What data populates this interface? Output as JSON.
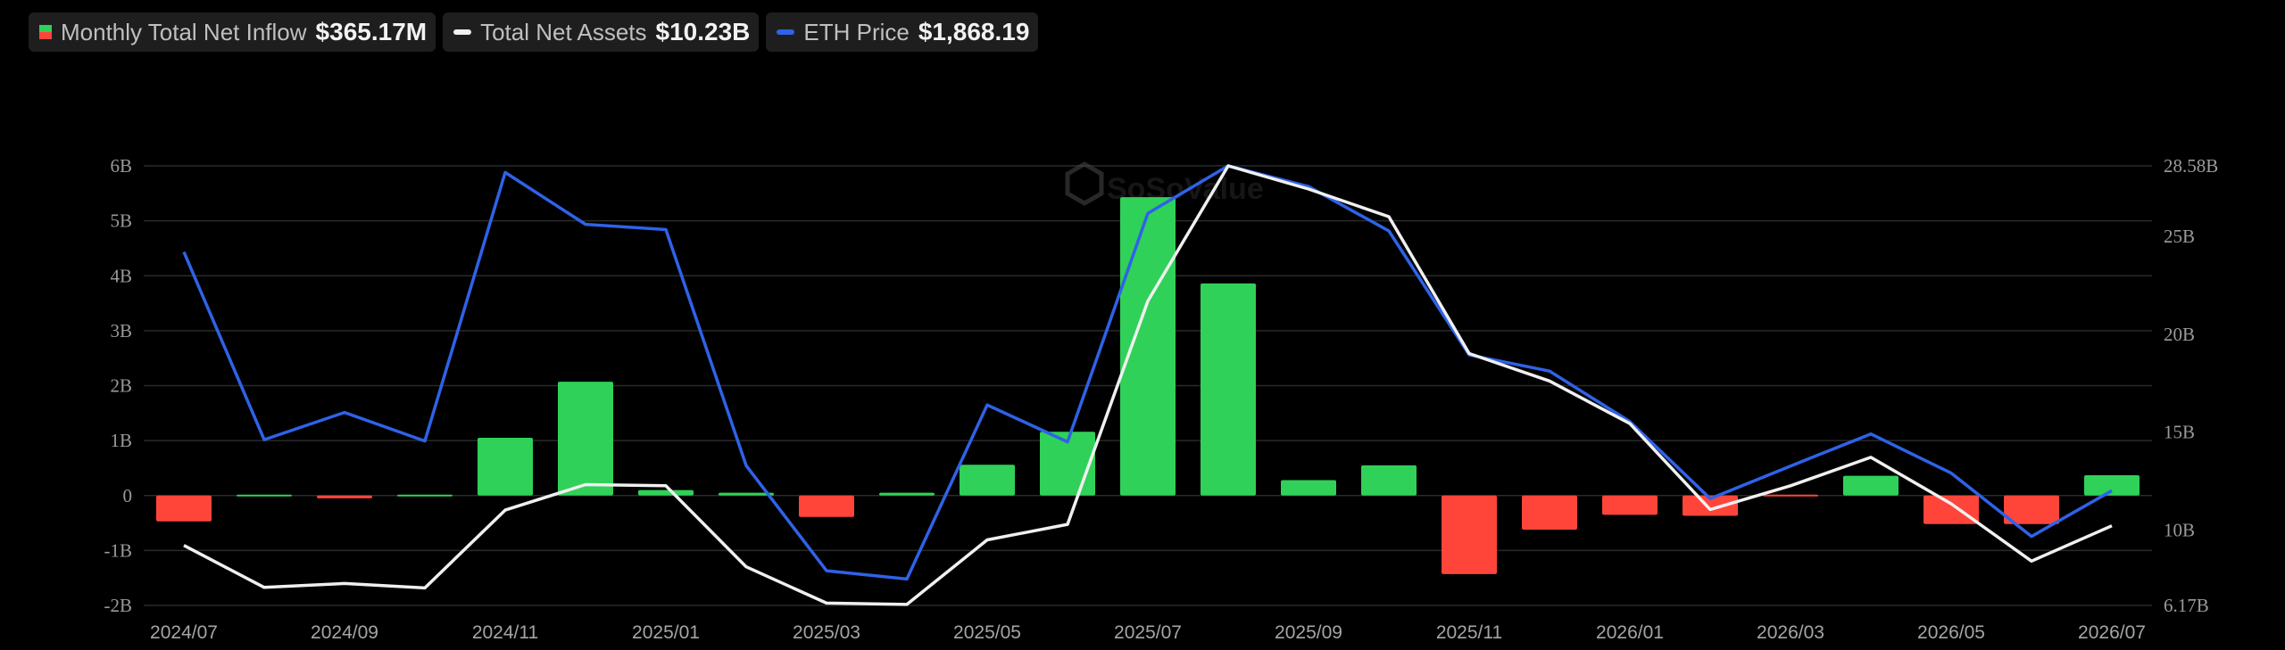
{
  "legend": {
    "inflow_label": "Monthly Total Net Inflow",
    "inflow_value": "$365.17M",
    "assets_label": "Total Net Assets",
    "assets_value": "$10.23B",
    "eth_label": "ETH Price",
    "eth_value": "$1,868.19"
  },
  "colors": {
    "positive": "#30d158",
    "negative": "#ff453a",
    "assets_line": "#f0f0f0",
    "eth_line": "#2f62e8",
    "grid": "#2a2a2a"
  },
  "watermark": "SoSoValue",
  "chart_data": {
    "type": "bar",
    "months": [
      "2024/07",
      "2024/08",
      "2024/09",
      "2024/10",
      "2024/11",
      "2024/12",
      "2025/01",
      "2025/02",
      "2025/03",
      "2025/04",
      "2025/05",
      "2025/06",
      "2025/07",
      "2025/08",
      "2025/09",
      "2025/10",
      "2025/11",
      "2025/12",
      "2026/01",
      "2026/02",
      "2026/03",
      "2026/04",
      "2026/05",
      "2026/06",
      "2026/07"
    ],
    "x_tick_labels": [
      "2024/07",
      "2024/09",
      "2024/11",
      "2025/01",
      "2025/03",
      "2025/05",
      "2025/07",
      "2025/09",
      "2025/11",
      "2026/01",
      "2026/03",
      "2026/05",
      "2026/07"
    ],
    "left_axis": {
      "ticks": [
        "-2B",
        "-1B",
        "0",
        "1B",
        "2B",
        "3B",
        "4B",
        "5B",
        "6B"
      ],
      "range": [
        -2,
        6
      ],
      "unit": "B"
    },
    "right_axis": {
      "ticks": [
        "6.17B",
        "10B",
        "15B",
        "20B",
        "25B",
        "28.58B"
      ],
      "range": [
        6.17,
        28.58
      ],
      "unit": "B"
    },
    "series": [
      {
        "name": "Monthly Total Net Inflow",
        "axis": "left",
        "kind": "bar",
        "values": [
          -0.47,
          0.0,
          -0.05,
          0.03,
          1.05,
          2.07,
          0.1,
          0.05,
          -0.39,
          0.05,
          0.56,
          1.16,
          5.43,
          3.86,
          0.28,
          0.55,
          -1.43,
          -0.62,
          -0.35,
          -0.37,
          -0.02,
          0.36,
          -0.52,
          -0.52,
          0.37
        ]
      },
      {
        "name": "Total Net Assets",
        "axis": "right",
        "kind": "line",
        "values": [
          9.23,
          7.09,
          7.29,
          7.06,
          11.03,
          12.33,
          12.27,
          8.14,
          6.29,
          6.22,
          9.51,
          10.3,
          21.69,
          28.58,
          27.4,
          25.99,
          19.01,
          17.61,
          15.44,
          11.06,
          12.27,
          13.72,
          11.35,
          8.43,
          10.23
        ]
      },
      {
        "name": "ETH Price",
        "axis": "right",
        "kind": "line",
        "right_scale_fraction": true,
        "values": [
          0.804,
          0.377,
          0.439,
          0.374,
          0.985,
          0.867,
          0.855,
          0.318,
          0.079,
          0.06,
          0.456,
          0.372,
          0.892,
          1.0,
          0.953,
          0.852,
          0.57,
          0.533,
          0.418,
          0.243,
          0.317,
          0.39,
          0.301,
          0.157,
          0.261
        ]
      }
    ],
    "grid": true,
    "legend_position": "top-left"
  }
}
